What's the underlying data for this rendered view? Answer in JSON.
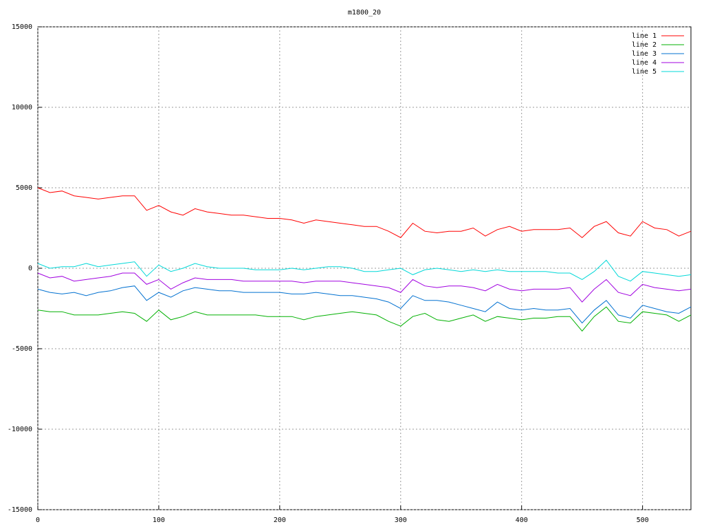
{
  "chart_data": {
    "type": "line",
    "title": "m1800_20",
    "x": [
      0,
      10,
      20,
      30,
      40,
      50,
      60,
      70,
      80,
      90,
      100,
      110,
      120,
      130,
      140,
      150,
      160,
      170,
      180,
      190,
      200,
      210,
      220,
      230,
      240,
      250,
      260,
      270,
      280,
      290,
      300,
      310,
      320,
      330,
      340,
      350,
      360,
      370,
      380,
      390,
      400,
      410,
      420,
      430,
      440,
      450,
      460,
      470,
      480,
      490,
      500,
      510,
      520,
      530,
      540
    ],
    "series": [
      {
        "name": "line 1",
        "color": "#ff0000",
        "values": [
          5000,
          4700,
          4800,
          4500,
          4400,
          4300,
          4400,
          4500,
          4500,
          3600,
          3900,
          3500,
          3300,
          3700,
          3500,
          3400,
          3300,
          3300,
          3200,
          3100,
          3100,
          3000,
          2800,
          3000,
          2900,
          2800,
          2700,
          2600,
          2600,
          2300,
          1900,
          2800,
          2300,
          2200,
          2300,
          2300,
          2500,
          2000,
          2400,
          2600,
          2300,
          2400,
          2400,
          2400,
          2500,
          1900,
          2600,
          2900,
          2200,
          2000,
          2900,
          2500,
          2400,
          2000,
          2300
        ]
      },
      {
        "name": "line 2",
        "color": "#00b000",
        "values": [
          -2600,
          -2700,
          -2700,
          -2900,
          -2900,
          -2900,
          -2800,
          -2700,
          -2800,
          -3300,
          -2600,
          -3200,
          -3000,
          -2700,
          -2900,
          -2900,
          -2900,
          -2900,
          -2900,
          -3000,
          -3000,
          -3000,
          -3200,
          -3000,
          -2900,
          -2800,
          -2700,
          -2800,
          -2900,
          -3300,
          -3600,
          -3000,
          -2800,
          -3200,
          -3300,
          -3100,
          -2900,
          -3300,
          -3000,
          -3100,
          -3200,
          -3100,
          -3100,
          -3000,
          -3000,
          -3900,
          -3000,
          -2400,
          -3300,
          -3400,
          -2700,
          -2800,
          -2900,
          -3300,
          -2900
        ]
      },
      {
        "name": "line 3",
        "color": "#0070d0",
        "values": [
          -1300,
          -1500,
          -1600,
          -1500,
          -1700,
          -1500,
          -1400,
          -1200,
          -1100,
          -2000,
          -1500,
          -1800,
          -1400,
          -1200,
          -1300,
          -1400,
          -1400,
          -1500,
          -1500,
          -1500,
          -1500,
          -1600,
          -1600,
          -1500,
          -1600,
          -1700,
          -1700,
          -1800,
          -1900,
          -2100,
          -2500,
          -1700,
          -2000,
          -2000,
          -2100,
          -2300,
          -2500,
          -2700,
          -2100,
          -2500,
          -2600,
          -2500,
          -2600,
          -2600,
          -2500,
          -3400,
          -2600,
          -2000,
          -2900,
          -3100,
          -2300,
          -2500,
          -2700,
          -2800,
          -2400
        ]
      },
      {
        "name": "line 4",
        "color": "#a000e0",
        "values": [
          -300,
          -600,
          -500,
          -800,
          -700,
          -600,
          -500,
          -300,
          -300,
          -1000,
          -700,
          -1300,
          -900,
          -600,
          -700,
          -700,
          -700,
          -800,
          -800,
          -800,
          -800,
          -800,
          -900,
          -800,
          -800,
          -800,
          -900,
          -1000,
          -1100,
          -1200,
          -1500,
          -700,
          -1100,
          -1200,
          -1100,
          -1100,
          -1200,
          -1400,
          -1000,
          -1300,
          -1400,
          -1300,
          -1300,
          -1300,
          -1200,
          -2100,
          -1300,
          -700,
          -1500,
          -1700,
          -1000,
          -1200,
          -1300,
          -1400,
          -1300
        ]
      },
      {
        "name": "line 5",
        "color": "#00d8d8",
        "values": [
          300,
          0,
          100,
          100,
          300,
          100,
          200,
          300,
          400,
          -500,
          200,
          -200,
          0,
          300,
          100,
          0,
          0,
          0,
          -100,
          -100,
          -100,
          0,
          -100,
          0,
          100,
          100,
          0,
          -200,
          -200,
          -100,
          0,
          -400,
          -100,
          0,
          -100,
          -200,
          -100,
          -200,
          -100,
          -200,
          -200,
          -200,
          -200,
          -300,
          -300,
          -700,
          -200,
          500,
          -500,
          -800,
          -200,
          -300,
          -400,
          -500,
          -400
        ]
      }
    ],
    "xlim": [
      0,
      540
    ],
    "ylim": [
      -15000,
      15000
    ],
    "xticks": [
      0,
      100,
      200,
      300,
      400,
      500
    ],
    "yticks": [
      -15000,
      -10000,
      -5000,
      0,
      5000,
      10000,
      15000
    ],
    "grid": true,
    "legend": "top-right"
  }
}
